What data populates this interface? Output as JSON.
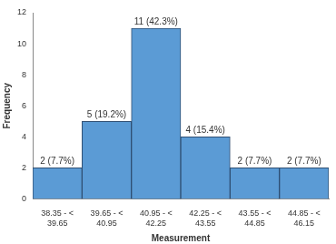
{
  "chart_data": {
    "type": "histogram",
    "x_label": "Measurement",
    "y_label": "Frequency",
    "categories": [
      "38.35 - < 39.65",
      "39.65 - < 40.95",
      "40.95 - < 42.25",
      "42.25 - < 43.55",
      "43.55 - < 44.85",
      "44.85 - < 46.15"
    ],
    "values": [
      2,
      5,
      11,
      4,
      2,
      2
    ],
    "value_labels": [
      "2 (7.7%)",
      "5 (19.2%)",
      "11 (42.3%)",
      "4 (15.4%)",
      "2 (7.7%)",
      "2 (7.7%)"
    ],
    "data_labels": true,
    "color": "#5b9bd5",
    "ylim": [
      0,
      12
    ],
    "yticks": [
      0,
      2,
      4,
      6,
      8,
      10,
      12
    ],
    "grid": false
  }
}
